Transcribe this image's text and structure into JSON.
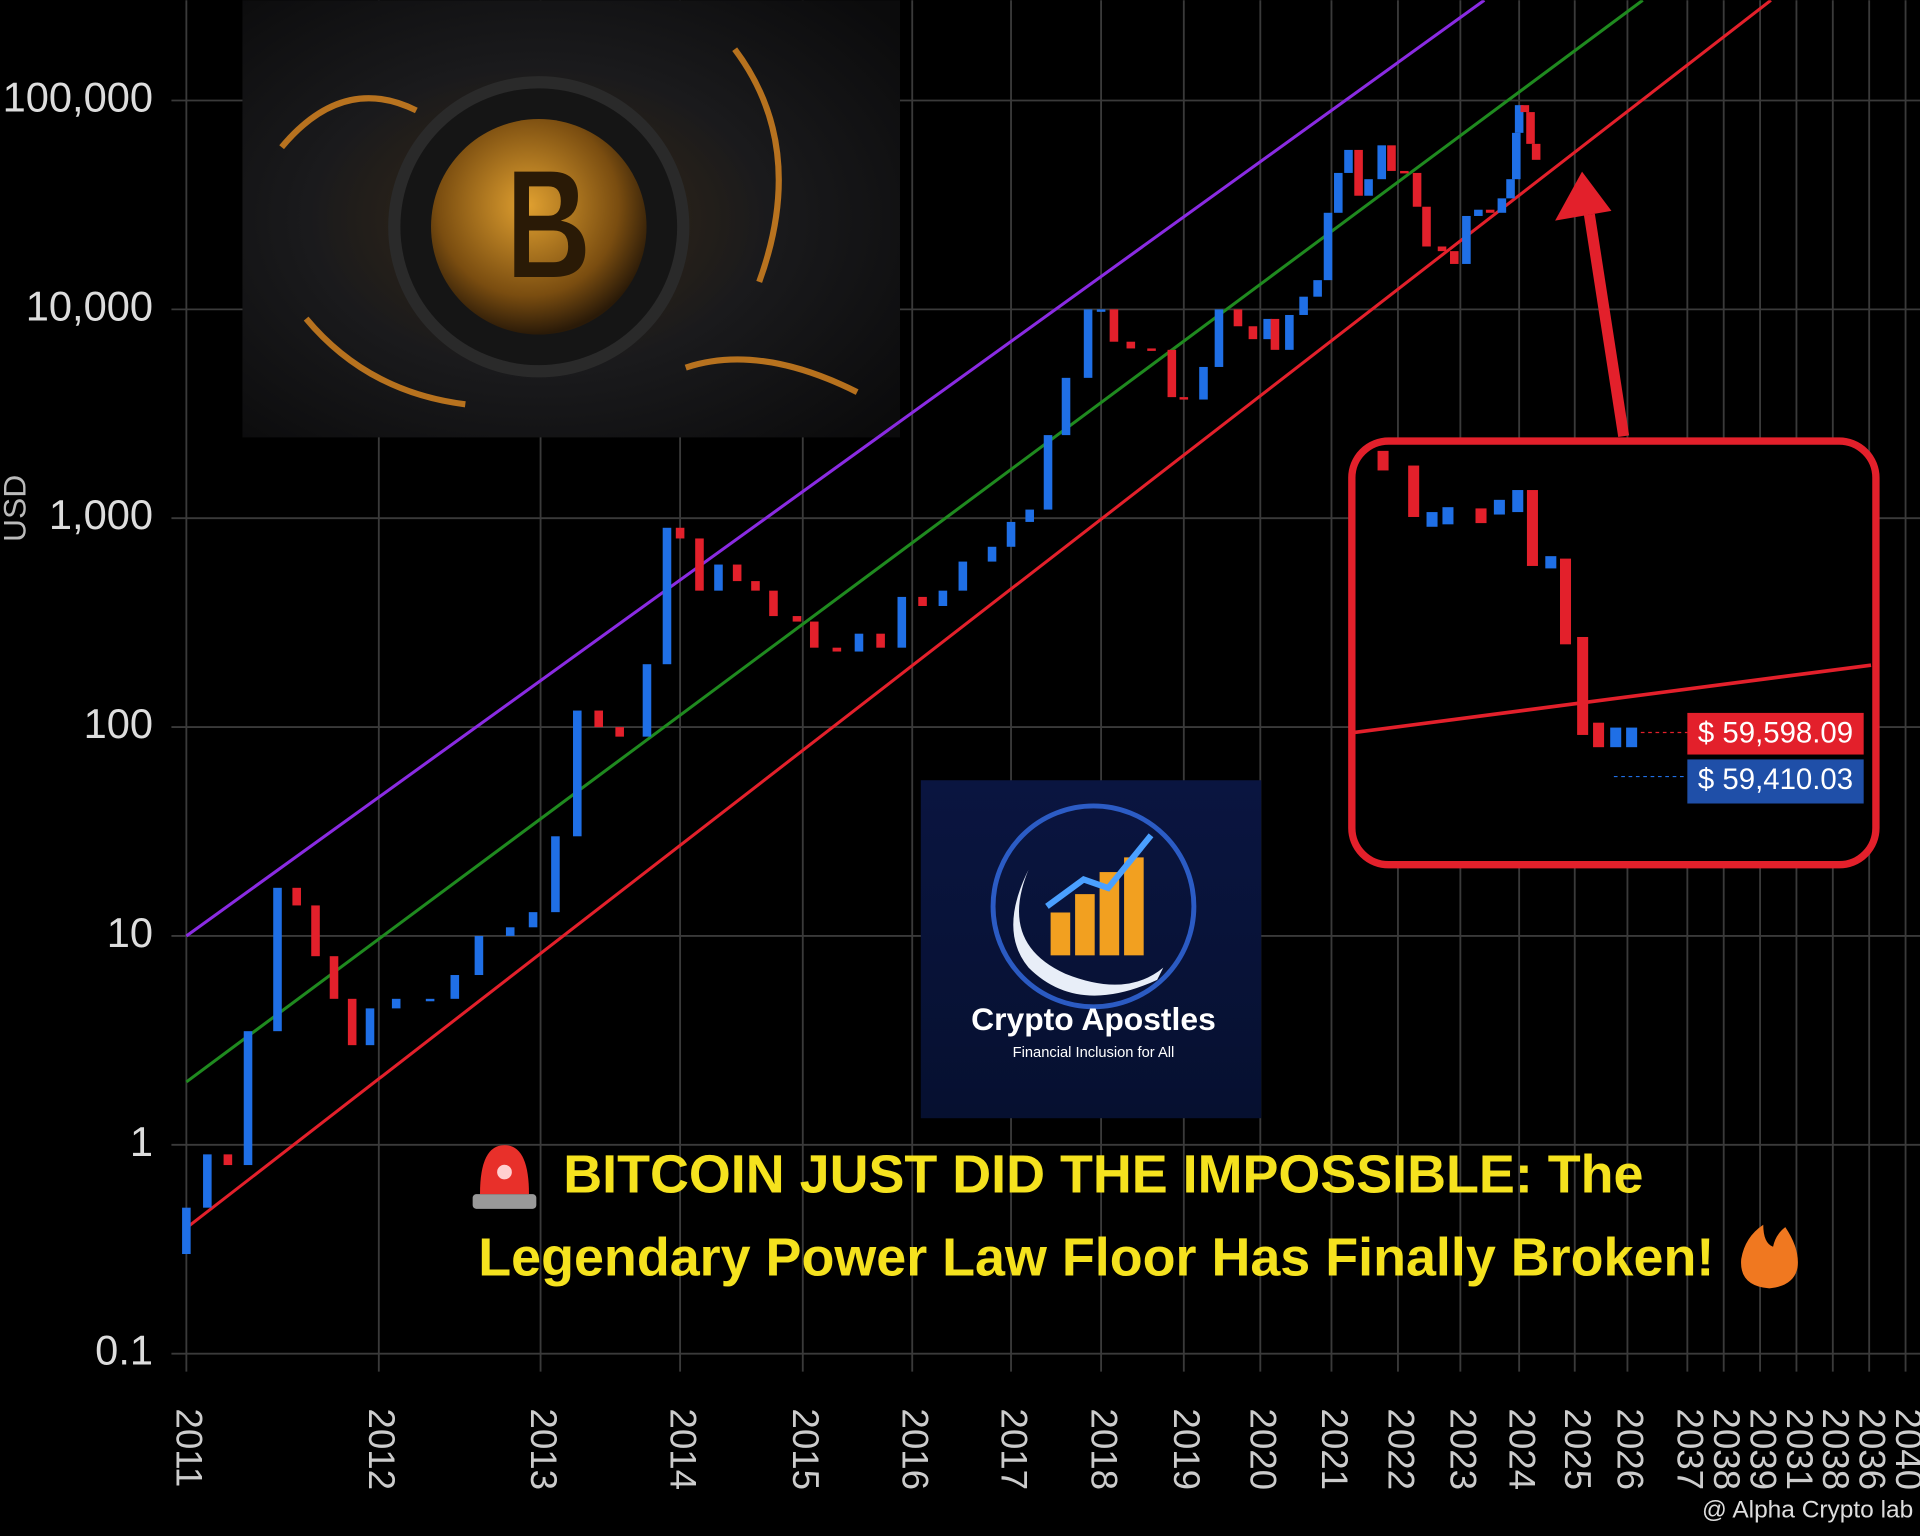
{
  "chart_data": {
    "type": "candlestick",
    "ylabel": "USD",
    "yscale": "log",
    "xscale": "log",
    "grid": true,
    "xlim": [
      2010.93,
      2032.6
    ],
    "ylim": [
      0.082,
      302000
    ],
    "xticks": [
      2011,
      2012,
      2013,
      2014,
      2015,
      2016,
      2017,
      2018,
      2019,
      2020,
      2021,
      2022,
      2023,
      2024,
      2025,
      2026
    ],
    "x_tail_labels": [
      "2037",
      "2038",
      "2039",
      "2031",
      "2038",
      "2036",
      "2040"
    ],
    "yticks": [
      {
        "value": 100000,
        "label": "100,000"
      },
      {
        "value": 10000,
        "label": "10,000"
      },
      {
        "value": 1000,
        "label": "1,000"
      },
      100,
      10,
      1,
      0.1
    ],
    "candles": {
      "up_color": "#1f6fe6",
      "down_color": "#e3202b",
      "x": [
        2011.0,
        2011.1,
        2011.2,
        2011.3,
        2011.45,
        2011.55,
        2011.65,
        2011.75,
        2011.85,
        2011.95,
        2012.1,
        2012.3,
        2012.45,
        2012.6,
        2012.8,
        2012.95,
        2013.1,
        2013.25,
        2013.4,
        2013.55,
        2013.75,
        2013.9,
        2014.0,
        2014.15,
        2014.3,
        2014.45,
        2014.6,
        2014.75,
        2014.95,
        2015.1,
        2015.3,
        2015.5,
        2015.7,
        2015.9,
        2016.1,
        2016.3,
        2016.5,
        2016.8,
        2017.0,
        2017.2,
        2017.4,
        2017.6,
        2017.85,
        2018.0,
        2018.15,
        2018.35,
        2018.6,
        2018.85,
        2019.0,
        2019.25,
        2019.45,
        2019.7,
        2019.9,
        2020.1,
        2020.2,
        2020.4,
        2020.6,
        2020.8,
        2020.95,
        2021.1,
        2021.25,
        2021.4,
        2021.55,
        2021.75,
        2021.9,
        2022.1,
        2022.3,
        2022.45,
        2022.7,
        2022.9,
        2023.1,
        2023.3,
        2023.5,
        2023.7,
        2023.85,
        2023.95,
        2024.0,
        2024.1,
        2024.2,
        2024.3
      ],
      "open": [
        0.3,
        0.5,
        0.9,
        0.8,
        3.5,
        17,
        14,
        8,
        5,
        3,
        4.5,
        5,
        5,
        6.5,
        10,
        11,
        13,
        30,
        120,
        100,
        90,
        200,
        900,
        800,
        450,
        600,
        500,
        450,
        340,
        320,
        240,
        230,
        280,
        240,
        420,
        380,
        450,
        620,
        730,
        960,
        1100,
        2500,
        4700,
        10000,
        10000,
        7000,
        6500,
        6400,
        3800,
        3700,
        5300,
        10000,
        8300,
        7200,
        9000,
        6400,
        9400,
        11500,
        13800,
        29000,
        45000,
        58000,
        35000,
        42000,
        61000,
        46000,
        45000,
        31000,
        20000,
        19000,
        16500,
        28000,
        30000,
        29000,
        34000,
        42000,
        70000,
        95000,
        88000,
        62000
      ],
      "close": [
        0.5,
        0.9,
        0.8,
        3.5,
        17,
        14,
        8,
        5,
        3,
        4.5,
        5,
        5,
        6.5,
        10,
        11,
        13,
        30,
        120,
        100,
        90,
        200,
        900,
        800,
        450,
        600,
        500,
        450,
        340,
        320,
        240,
        230,
        280,
        240,
        420,
        380,
        450,
        620,
        730,
        960,
        1100,
        2500,
        4700,
        10000,
        10000,
        7000,
        6500,
        6400,
        3800,
        3700,
        5300,
        10000,
        8300,
        7200,
        9000,
        6400,
        9400,
        11500,
        13800,
        29000,
        45000,
        58000,
        35000,
        42000,
        61000,
        46000,
        45000,
        31000,
        20000,
        19000,
        16500,
        28000,
        30000,
        29000,
        34000,
        42000,
        70000,
        95000,
        88000,
        62000,
        52000
      ]
    },
    "lines": [
      {
        "color": "#8a2be2",
        "x": [
          2011,
          2023.4
        ],
        "values": [
          10,
          302000
        ]
      },
      {
        "color": "#1f8a1f",
        "x": [
          2011,
          2026.3
        ],
        "values": [
          2,
          302000
        ]
      },
      {
        "color": "#e3202b",
        "x": [
          2011,
          2029.0
        ],
        "values": [
          0.4,
          302000
        ]
      }
    ],
    "inset_labels": [
      {
        "text": "$ 59,598.09",
        "color": "#e3202b"
      },
      {
        "text": "$ 59,410.03",
        "color": "#1f4fa8"
      }
    ],
    "logo": {
      "title": "Crypto Apostles",
      "subtitle": "Financial Inclusion for All"
    },
    "headline": [
      "BITCOIN JUST DID THE IMPOSSIBLE: The",
      "Legendary Power Law Floor Has Finally Broken!"
    ],
    "watermark": "@ Alpha Crypto lab"
  }
}
